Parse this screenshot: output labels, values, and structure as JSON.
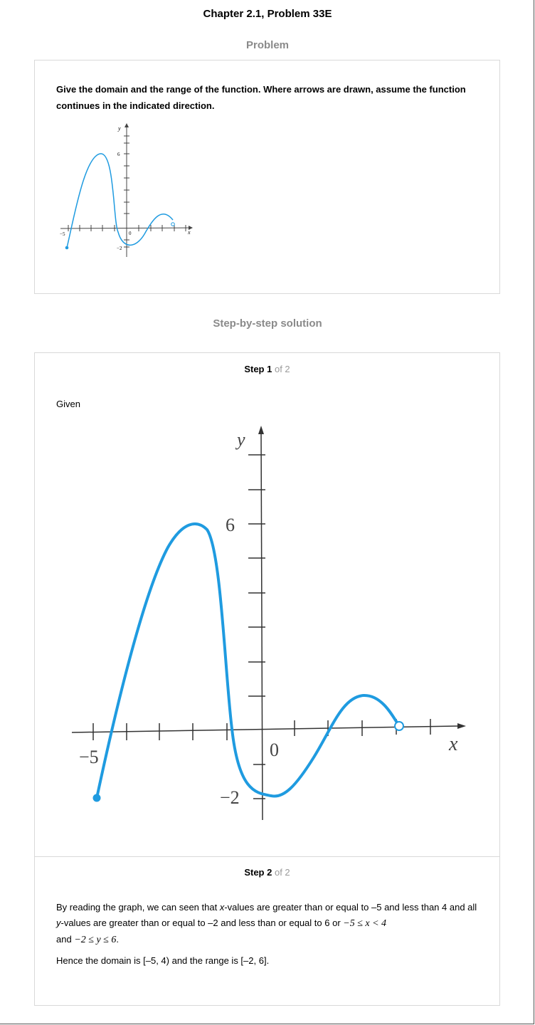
{
  "header": {
    "title": "Chapter 2.1, Problem 33E"
  },
  "problem": {
    "section_label": "Problem",
    "text": "Give the domain and the range of the function. Where arrows are drawn, assume the function continues in the indicated direction.",
    "graph_labels": {
      "y": "y",
      "x": "x",
      "six": "6",
      "zero": "0",
      "neg_five": "−5",
      "neg_two": "−2"
    }
  },
  "solution": {
    "section_label": "Step-by-step solution",
    "step1": {
      "step_word": "Step 1",
      "of_total": "of 2",
      "given": "Given",
      "graph_labels": {
        "y": "y",
        "x": "x",
        "six": "6",
        "zero": "0",
        "neg_five": "−5",
        "neg_two": "−2"
      }
    },
    "step2": {
      "step_word": "Step 2",
      "of_total": "of 2",
      "p1_a": "By reading the graph, we can seen that ",
      "p1_x": "x",
      "p1_b": "-values are greater than or equal to –5 and less than 4 and all ",
      "p1_y": "y",
      "p1_c": "-values are greater than or equal to –2 and less than or equal to 6 or ",
      "p1_math1": "−5 ≤ x < 4",
      "p1_and": "and ",
      "p1_math2": "−2 ≤ y ≤ 6",
      "p1_end": ".",
      "p2": "Hence the domain is [–5, 4) and the range is [–2, 6]."
    }
  },
  "colors": {
    "curve": "#1f9be0",
    "axis": "#333333",
    "muted": "#9a9a9a"
  }
}
